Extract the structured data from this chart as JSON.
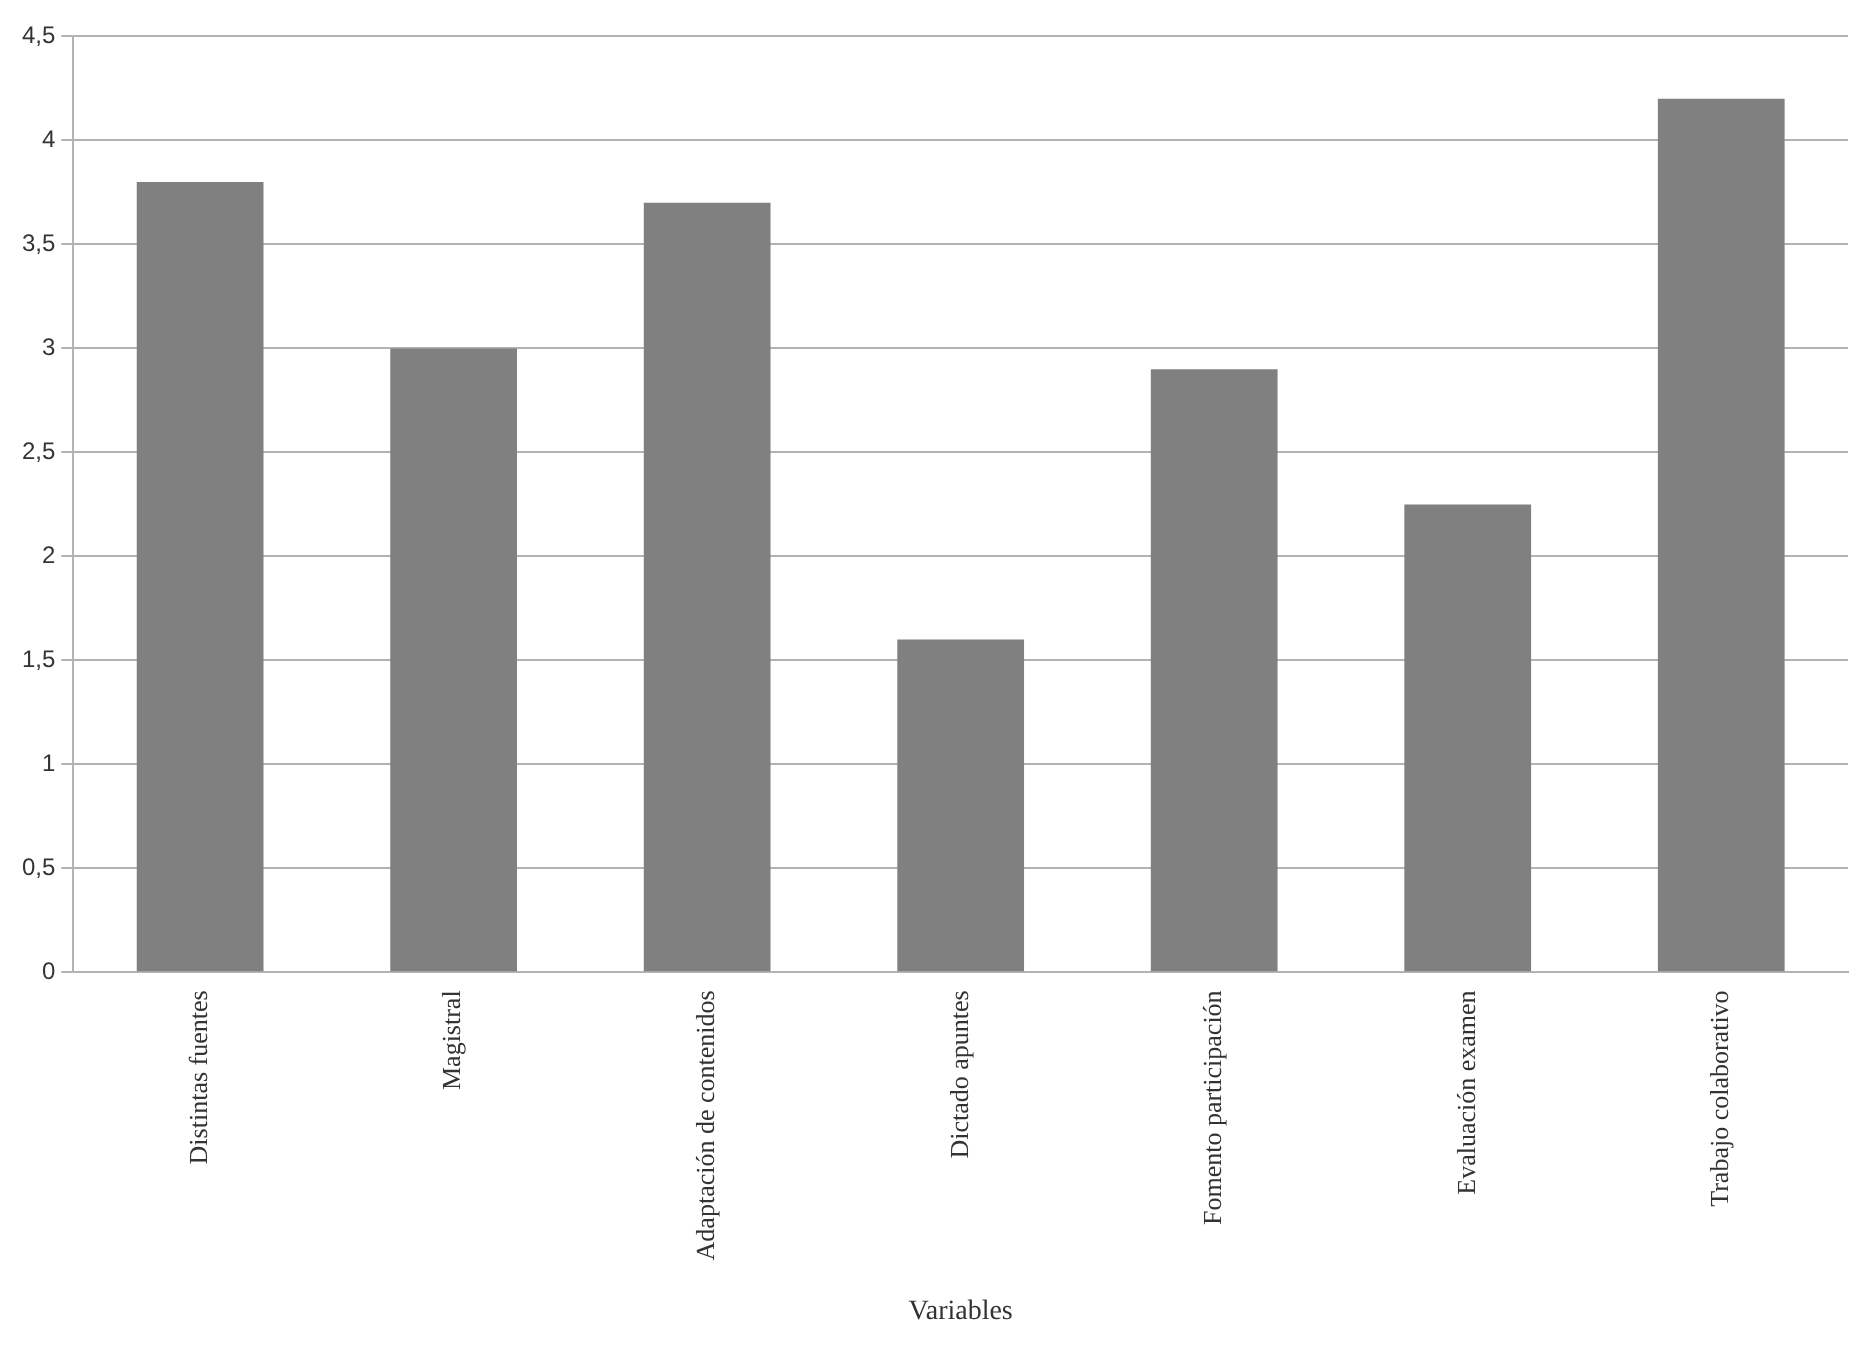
{
  "chart_data": {
    "type": "bar",
    "xlabel": "Variables",
    "categories": [
      "Distintas fuentes",
      "Magistral",
      "Adaptación de contenidos",
      "Dictado apuntes",
      "Fomento participación",
      "Evaluación examen",
      "Trabajo colaborativo"
    ],
    "values": [
      3.8,
      3.0,
      3.7,
      1.6,
      2.9,
      2.25,
      4.2
    ],
    "color": "#808080",
    "ylim": [
      0,
      4.5
    ],
    "yticks": [
      0,
      {
        "value": 0.5,
        "label": "0,5"
      },
      1,
      {
        "value": 1.5,
        "label": "1,5"
      },
      2,
      {
        "value": 2.5,
        "label": "2,5"
      },
      3,
      {
        "value": 3.5,
        "label": "3,5"
      },
      4,
      {
        "value": 4.5,
        "label": "4,5"
      }
    ],
    "grid": "y",
    "legend": false
  }
}
